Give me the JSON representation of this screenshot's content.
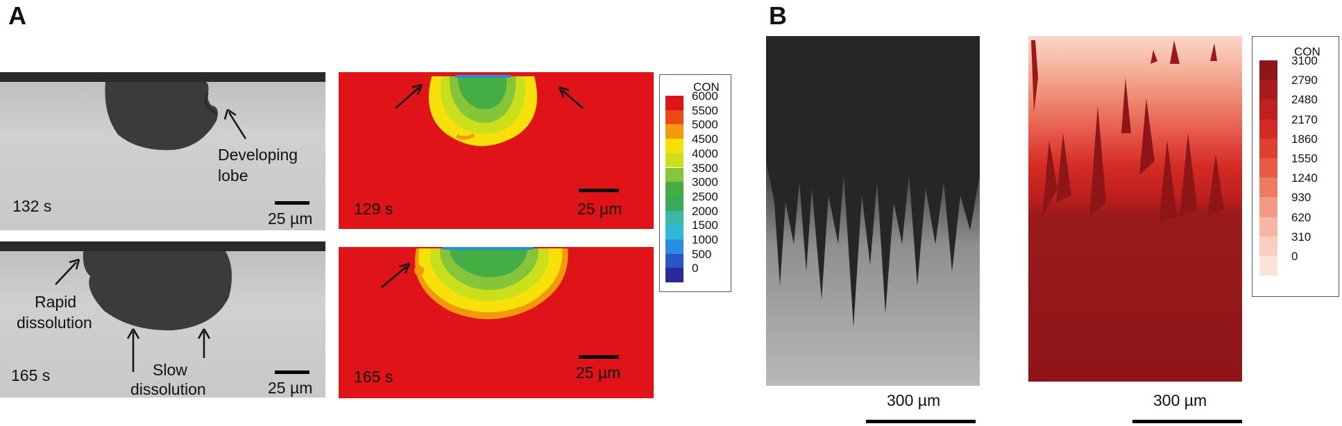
{
  "panels": {
    "a": {
      "letter": "A"
    },
    "b": {
      "letter": "B"
    }
  },
  "top_left": {
    "time": "132 s",
    "scale": "25 µm",
    "annotation_line1": "Developing",
    "annotation_line2": "lobe"
  },
  "top_right": {
    "time": "129 s",
    "scale": "25 µm"
  },
  "bottom_left": {
    "time": "165 s",
    "scale": "25 µm",
    "rapid_line1": "Rapid",
    "rapid_line2": "dissolution",
    "slow_line1": "Slow",
    "slow_line2": "dissolution"
  },
  "bottom_right": {
    "time": "165 s",
    "scale": "25 µm"
  },
  "legend_a": {
    "title": "CON",
    "ticks": [
      "6000",
      "5500",
      "5000",
      "4500",
      "4000",
      "3500",
      "3000",
      "2500",
      "2000",
      "1500",
      "1000",
      "500",
      "0"
    ],
    "colors": [
      "#e01418",
      "#ea4a14",
      "#f29a0c",
      "#f8e10a",
      "#c9e01a",
      "#86c43a",
      "#44ad44",
      "#3aaa5a",
      "#3cb8a8",
      "#30b8d8",
      "#2a8ee0",
      "#2b55c8",
      "#2a2a9a"
    ]
  },
  "legend_b": {
    "title": "CON",
    "ticks": [
      "3100",
      "2790",
      "2480",
      "2170",
      "1860",
      "1550",
      "1240",
      "930",
      "620",
      "310",
      "0"
    ],
    "colors": [
      "#8e1518",
      "#a81a1c",
      "#c0201e",
      "#d42a24",
      "#e03e2e",
      "#e85a44",
      "#ee7a62",
      "#f29a84",
      "#f6b8a4",
      "#f9d0c0",
      "#fbe3d8"
    ]
  },
  "b_left": {
    "scale": "300 µm"
  },
  "b_right": {
    "scale": "300 µm"
  }
}
